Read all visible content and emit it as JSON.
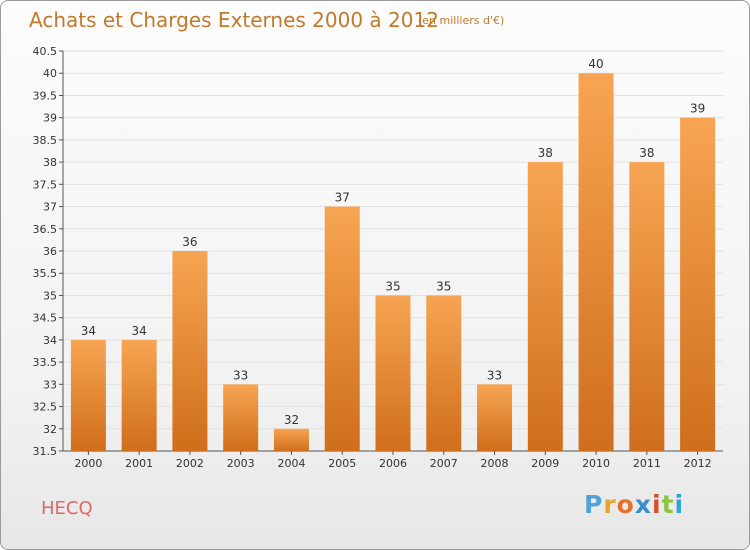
{
  "header": {
    "title": "Achats et Charges Externes 2000 à 2012",
    "subtitle": "(en milliers d'€)"
  },
  "footer": {
    "commune": "HECQ",
    "logo_text": "Proxiti"
  },
  "colors": {
    "title": "#c27a2a",
    "commune": "#e06565",
    "bar_light": "#f7a553",
    "bar_dark": "#cf6e1b",
    "grid": "#e2e2e2",
    "logo_letters": [
      "#4fa3d8",
      "#e8a42c",
      "#e8702c",
      "#3a8fd0",
      "#d84f2c",
      "#8cc63f",
      "#2fa4d8"
    ]
  },
  "chart_data": {
    "type": "bar",
    "title": "Achats et Charges Externes 2000 à 2012",
    "subtitle": "(en milliers d'€)",
    "categories": [
      "2000",
      "2001",
      "2002",
      "2003",
      "2004",
      "2005",
      "2006",
      "2007",
      "2008",
      "2009",
      "2010",
      "2011",
      "2012"
    ],
    "values": [
      34,
      34,
      36,
      33,
      32,
      37,
      35,
      35,
      33,
      38,
      40,
      38,
      39
    ],
    "ylim": [
      31.5,
      40.5
    ],
    "yticks": [
      "31.5",
      "32",
      "32.5",
      "33",
      "33.5",
      "34",
      "34.5",
      "35",
      "35.5",
      "36",
      "36.5",
      "37",
      "37.5",
      "38",
      "38.5",
      "39",
      "39.5",
      "40",
      "40.5"
    ],
    "grid": true,
    "xlabel": "",
    "ylabel": ""
  }
}
